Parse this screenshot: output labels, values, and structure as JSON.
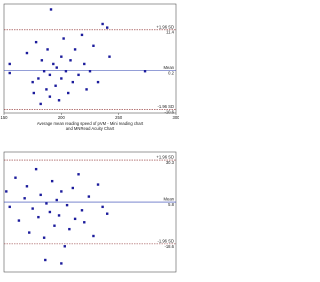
{
  "chart_data": [
    {
      "type": "scatter",
      "x": [
        155,
        155,
        170,
        175,
        176,
        178,
        180,
        182,
        183,
        185,
        187,
        188,
        190,
        190,
        191,
        193,
        195,
        196,
        198,
        200,
        200,
        202,
        204,
        206,
        208,
        210,
        212,
        215,
        218,
        220,
        222,
        225,
        228,
        232,
        236,
        240,
        242,
        273
      ],
      "y": [
        2,
        -0.5,
        5,
        -3,
        -6,
        8,
        -2,
        -9,
        3,
        0,
        -5,
        6,
        -1,
        -7,
        17,
        2,
        -4,
        1,
        -8,
        4,
        -2,
        9,
        0,
        -6,
        3,
        -3,
        6,
        -1,
        10,
        2,
        -5,
        0,
        7,
        -3,
        13,
        12,
        4,
        0
      ],
      "color": "#1c1c9c",
      "xlim": [
        150,
        300
      ],
      "ylim": [
        -11.5,
        18.5
      ],
      "xticks": [
        150,
        200,
        250,
        300
      ],
      "xlabel": [
        "Average mean reading speed of pVM - Mini reading chart",
        "and MNRead Acuity Chart"
      ],
      "lines": [
        {
          "name": "+1.96 SD",
          "value": 11.4,
          "color": "#8b2a2a",
          "style": "dashed"
        },
        {
          "name": "Mean",
          "value": 0.2,
          "color": "#2a3fb0",
          "style": "solid"
        },
        {
          "name": "-1.96 SD",
          "value": -10.6,
          "color": "#8b2a2a",
          "style": "dashed"
        }
      ]
    },
    {
      "type": "scatter",
      "x": [
        152,
        155,
        160,
        163,
        168,
        170,
        172,
        175,
        178,
        180,
        182,
        185,
        187,
        190,
        192,
        194,
        196,
        198,
        200,
        203,
        205,
        207,
        210,
        212,
        215,
        218,
        220,
        224,
        228,
        232,
        236,
        240,
        200,
        186
      ],
      "y": [
        12,
        3,
        20,
        -5,
        8,
        15,
        -12,
        2,
        25,
        -3,
        10,
        -15,
        5,
        0,
        18,
        -8,
        7,
        -2,
        12,
        -20,
        4,
        -10,
        14,
        -4,
        22,
        1,
        -6,
        9,
        -14,
        16,
        3,
        -1,
        -30,
        -28
      ],
      "color": "#1c1c9c",
      "xlim": [
        150,
        300
      ],
      "ylim": [
        -35,
        35
      ],
      "lines": [
        {
          "name": "+1.96 SD",
          "value": 30.3,
          "color": "#8b2a2a",
          "style": "dashed"
        },
        {
          "name": "Mean",
          "value": 5.8,
          "color": "#2a3fb0",
          "style": "solid"
        },
        {
          "name": "-1.96 SD",
          "value": -18.6,
          "color": "#8b2a2a",
          "style": "dashed"
        }
      ]
    }
  ]
}
